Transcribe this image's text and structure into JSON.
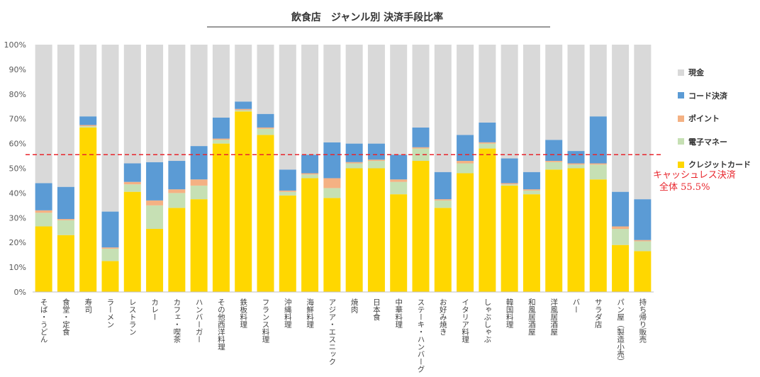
{
  "chart_data": {
    "type": "bar",
    "stacked": true,
    "title": "飲食店　ジャンル別 決済手段比率",
    "xlabel": "",
    "ylabel": "",
    "ylim": [
      0,
      100
    ],
    "yticks": [
      "0%",
      "10%",
      "20%",
      "30%",
      "40%",
      "50%",
      "60%",
      "70%",
      "80%",
      "90%",
      "100%"
    ],
    "grid": false,
    "legend_position": "right",
    "categories": [
      "そば・うどん",
      "食堂・定食",
      "寿司",
      "ラーメン",
      "レストラン",
      "カレー",
      "カフェ・喫茶",
      "ハンバーガー",
      "その他西洋料理",
      "鉄板料理",
      "フランス料理",
      "沖縄料理",
      "海鮮料理",
      "アジア・エスニック",
      "焼肉",
      "日本食",
      "中華料理",
      "ステーキ・ハンバーグ",
      "お好み焼き",
      "イタリア料理",
      "しゃぶしゃぶ",
      "韓国料理",
      "和風居酒屋",
      "洋風居酒屋",
      "バー",
      "サラダ店",
      "パン屋（製造小売）",
      "持ち帰り販売"
    ],
    "series": [
      {
        "name": "クレジットカード",
        "color": "#ffd700",
        "values": [
          26.5,
          23,
          66.5,
          12.5,
          40.5,
          25.5,
          34,
          37.5,
          60,
          73,
          63.5,
          39,
          46,
          38,
          50,
          50,
          39.5,
          53,
          34,
          48,
          58,
          43,
          39.5,
          49.5,
          50,
          45.5,
          19,
          16.5
        ]
      },
      {
        "name": "電子マネー",
        "color": "#c6e0b4",
        "values": [
          5.5,
          6,
          0.5,
          5,
          3,
          9.5,
          6,
          5.5,
          1.5,
          0.5,
          2.5,
          1.5,
          1.5,
          4,
          2,
          3,
          5,
          5,
          3,
          4,
          2,
          0.5,
          1.5,
          3,
          1.5,
          6,
          6.5,
          4
        ]
      },
      {
        "name": "ポイント",
        "color": "#f4b183",
        "values": [
          1,
          0.5,
          0.5,
          0.5,
          1,
          2,
          1.5,
          2.5,
          0.5,
          0.5,
          0.5,
          0.5,
          0.5,
          4,
          0.5,
          0.5,
          1,
          0.5,
          0.5,
          1,
          0.5,
          0.5,
          0.5,
          0.5,
          0.5,
          0.5,
          1,
          0.5
        ]
      },
      {
        "name": "コード決済",
        "color": "#5b9bd5",
        "values": [
          11,
          13,
          3.5,
          14.5,
          7.5,
          15.5,
          11.5,
          13.5,
          8.5,
          3,
          5.5,
          8.5,
          7.5,
          14.5,
          7.5,
          6.5,
          10,
          8,
          11,
          10.5,
          8,
          10,
          7,
          8.5,
          5,
          19,
          14,
          16.5
        ]
      },
      {
        "name": "現金",
        "color": "#d9d9d9",
        "values": [
          56,
          57.5,
          29,
          67.5,
          48,
          47.5,
          47,
          41,
          29.5,
          23,
          28,
          50.5,
          44.5,
          39.5,
          40,
          40,
          44.5,
          33.5,
          51.5,
          36.5,
          31.5,
          46,
          51.5,
          38.5,
          43,
          29,
          59.5,
          62.5
        ]
      }
    ],
    "legend_order": [
      "現金",
      "コード決済",
      "ポイント",
      "電子マネー",
      "クレジットカード"
    ],
    "reference_line": {
      "value": 55.5,
      "color": "#e8252c",
      "style": "dashed"
    },
    "annotation": [
      "キャッシュレス決済",
      "全体 55.5%"
    ]
  }
}
